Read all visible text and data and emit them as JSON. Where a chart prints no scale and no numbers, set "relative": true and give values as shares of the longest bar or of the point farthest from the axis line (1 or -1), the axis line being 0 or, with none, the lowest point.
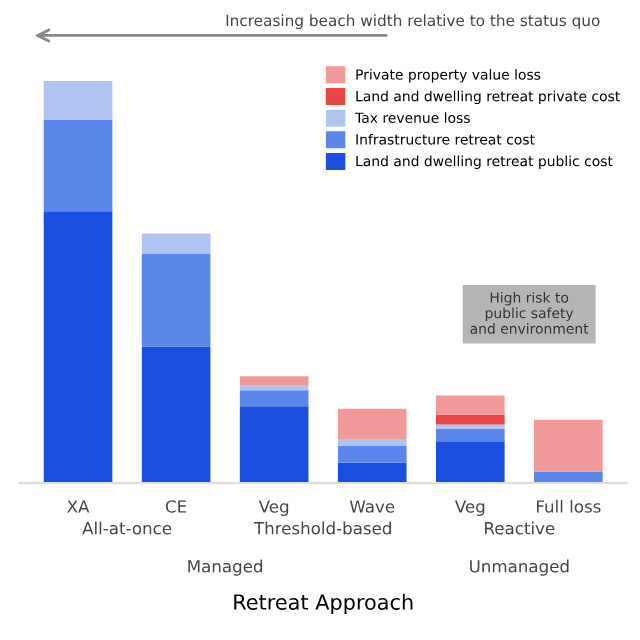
{
  "chart_data": {
    "type": "bar",
    "stacked": true,
    "relative": true,
    "xlabel": "Retreat Approach",
    "categories": [
      "XA",
      "CE",
      "Veg",
      "Wave",
      "Veg",
      "Full loss"
    ],
    "series": [
      {
        "name": "Land and dwelling retreat public cost",
        "color": "#1a4fe0",
        "values": [
          0.676,
          0.34,
          0.191,
          0.051,
          0.104,
          0
        ]
      },
      {
        "name": "Infrastructure retreat cost",
        "color": "#5b86ea",
        "values": [
          0.227,
          0.23,
          0.04,
          0.043,
          0.032,
          0.029
        ]
      },
      {
        "name": "Tax revenue loss",
        "color": "#b0c4f2",
        "values": [
          0.097,
          0.051,
          0.013,
          0.014,
          0.01,
          0
        ]
      },
      {
        "name": "Land and dwelling retreat private cost",
        "color": "#e84545",
        "values": [
          0,
          0,
          0,
          0,
          0.024,
          0
        ]
      },
      {
        "name": "Private property value loss",
        "color": "#f29a9a",
        "values": [
          0,
          0,
          0.022,
          0.077,
          0.048,
          0.129
        ]
      }
    ],
    "legend": "top right",
    "annotations": [
      "Increasing beach width relative to the status quo",
      "High risk to public safety and environment",
      "All-at-once",
      "Threshold-based",
      "Reactive",
      "Managed",
      "Unmanaged"
    ]
  }
}
